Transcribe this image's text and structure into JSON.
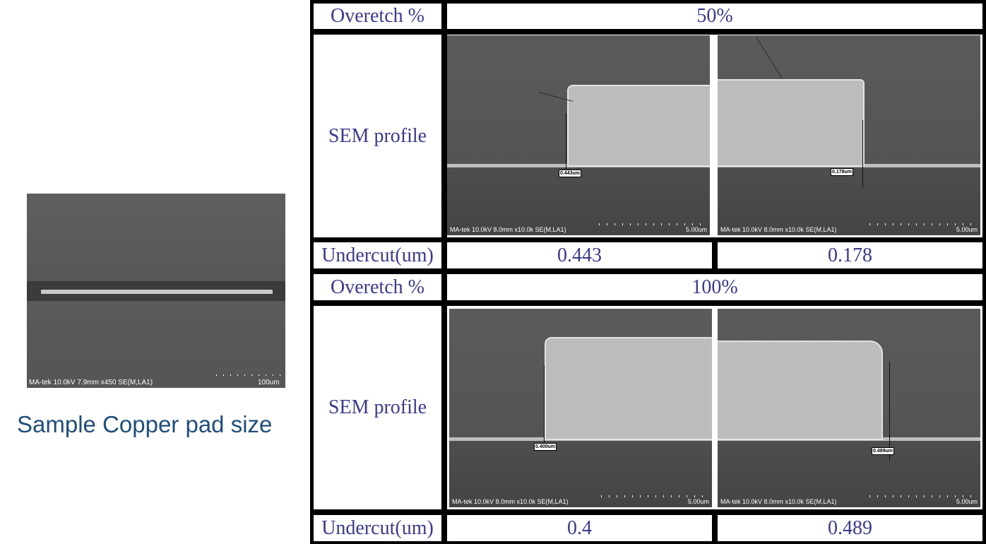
{
  "left": {
    "sem_info": "MA-tek 10.0kV 7.9mm x450 SE(M,LA1)",
    "sem_scale": "100um",
    "caption": "Sample Copper pad size"
  },
  "table": {
    "sections": [
      {
        "overetch_label": "Overetch %",
        "overetch_value": "50%",
        "sem_label": "SEM profile",
        "images": [
          {
            "info": "MA-tek 10.0kV 8.0mm x10.0k SE(M,LA1)",
            "scale": "5.00um",
            "measure": "0.443um"
          },
          {
            "info": "MA-tek 10.0kV 8.0mm x10.0k SE(M,LA1)",
            "scale": "5.00um",
            "measure": "0.178um"
          }
        ],
        "undercut_label": "Undercut(um)",
        "undercut_values": [
          "0.443",
          "0.178"
        ]
      },
      {
        "overetch_label": "Overetch %",
        "overetch_value": "100%",
        "sem_label": "SEM profile",
        "images": [
          {
            "info": "MA-tek 10.0kV 8.0mm x10.0k SE(M,LA1)",
            "scale": "5.00um",
            "measure": "0.400um"
          },
          {
            "info": "MA-tek 10.0kV 8.0mm x10.0k SE(M,LA1)",
            "scale": "5.00um",
            "measure": "0.489um"
          }
        ],
        "undercut_label": "Undercut(um)",
        "undercut_values": [
          "0.4",
          "0.489"
        ]
      }
    ]
  },
  "colors": {
    "label_text": "#3a3a8c",
    "caption_text": "#1f4e79",
    "grid": "#000000"
  }
}
